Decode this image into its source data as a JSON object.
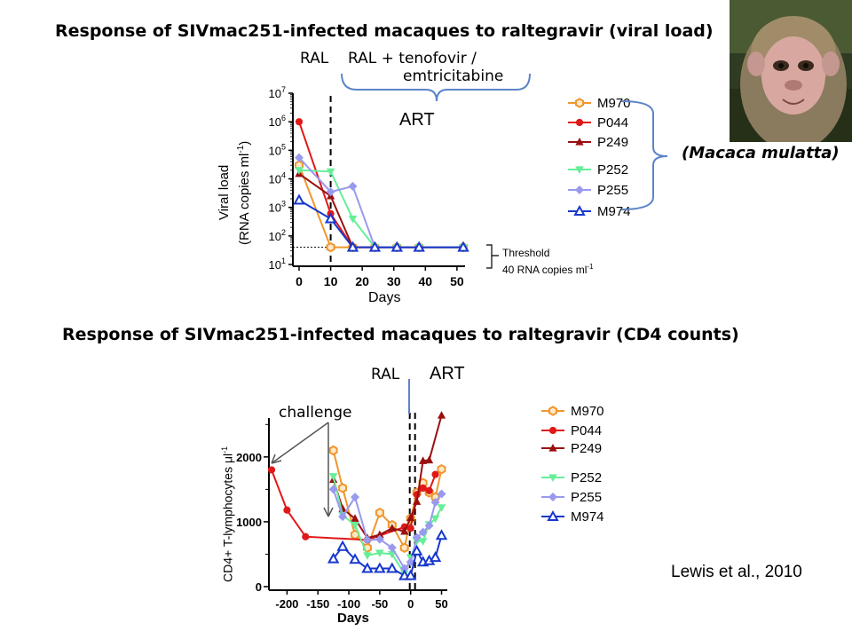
{
  "titles": {
    "viral": "Response of SIVmac251-infected macaques to raltegravir (viral load)",
    "cd4": "Response of SIVmac251-infected macaques to raltegravir (CD4 counts)"
  },
  "annotations": {
    "ral_top": "RAL",
    "ral_tdf": "RAL + tenofovir /",
    "emtric": "emtricitabine",
    "art_top": "ART",
    "threshold": "Threshold",
    "threshold_value": "40 RNA copies ml",
    "threshold_sup": "-1",
    "macaca": "(Macaca mulatta)",
    "ral_bottom": "RAL",
    "art_bottom": "ART",
    "challenge": "challenge",
    "citation": "Lewis et al., 2010"
  },
  "colors": {
    "M970": "#f0962c",
    "P044": "#e01818",
    "P249": "#9a1010",
    "P252": "#66ee99",
    "P255": "#9999ee",
    "M974": "#1838cc"
  },
  "chart_data": [
    {
      "type": "line",
      "title": "Response of SIVmac251-infected macaques to raltegravir (viral load)",
      "xlabel": "Days",
      "ylabel": "Viral load (RNA copies ml-1)",
      "ylabel_line1": "Viral load",
      "ylabel_line2": "(RNA copies ml",
      "ylabel_sup": "-1",
      "ylabel_end": ")",
      "yscale": "log",
      "xlim": [
        0,
        52
      ],
      "ylim": [
        10,
        10000000
      ],
      "x_ticks": [
        0,
        10,
        20,
        30,
        40,
        50
      ],
      "y_ticks": [
        {
          "v": 10,
          "m": "10",
          "e": "1"
        },
        {
          "v": 100,
          "m": "10",
          "e": "2"
        },
        {
          "v": 1000,
          "m": "10",
          "e": "3"
        },
        {
          "v": 10000,
          "m": "10",
          "e": "4"
        },
        {
          "v": 100000,
          "m": "10",
          "e": "5"
        },
        {
          "v": 1000000,
          "m": "10",
          "e": "6"
        },
        {
          "v": 10000000,
          "m": "10",
          "e": "7"
        }
      ],
      "threshold": 40,
      "treatment_start_day": 10,
      "series": [
        {
          "name": "M970",
          "marker": "hexagon",
          "x": [
            0,
            10,
            17,
            24,
            31,
            38,
            52
          ],
          "y": [
            30000,
            40,
            40,
            40,
            40,
            40,
            40
          ]
        },
        {
          "name": "P044",
          "marker": "circle",
          "x": [
            0,
            10,
            17,
            24,
            31,
            38,
            52
          ],
          "y": [
            1000000,
            600,
            40,
            40,
            40,
            40,
            40
          ]
        },
        {
          "name": "P249",
          "marker": "triangle-up",
          "x": [
            0,
            10,
            17,
            24,
            31,
            38,
            52
          ],
          "y": [
            15000,
            2500,
            40,
            40,
            40,
            40,
            40
          ]
        },
        {
          "name": "P252",
          "marker": "triangle-down",
          "x": [
            0,
            10,
            17,
            24,
            31,
            38,
            52
          ],
          "y": [
            20000,
            18000,
            400,
            40,
            40,
            40,
            40
          ]
        },
        {
          "name": "P255",
          "marker": "diamond",
          "x": [
            0,
            10,
            17,
            24,
            31,
            38,
            52
          ],
          "y": [
            55000,
            3500,
            5500,
            40,
            40,
            40,
            40
          ]
        },
        {
          "name": "M974",
          "marker": "triangle-up-open",
          "x": [
            0,
            10,
            17,
            24,
            31,
            38,
            52
          ],
          "y": [
            1800,
            400,
            40,
            40,
            40,
            40,
            40
          ]
        }
      ]
    },
    {
      "type": "line",
      "title": "Response of SIVmac251-infected macaques to raltegravir (CD4 counts)",
      "xlabel": "Days",
      "ylabel": "CD4+ T-lymphocytes μl-1",
      "xlim": [
        -225,
        55
      ],
      "ylim": [
        0,
        2600
      ],
      "x_ticks": [
        -200,
        -150,
        -100,
        -50,
        0,
        50
      ],
      "y_ticks": [
        0,
        1000,
        2000
      ],
      "ral_start_day": 0,
      "art_start_day": 10,
      "series": [
        {
          "name": "M970",
          "marker": "hexagon",
          "x": [
            -125,
            -110,
            -90,
            -70,
            -50,
            -30,
            -10,
            0,
            10,
            20,
            30,
            40,
            50
          ],
          "y": [
            2100,
            1520,
            800,
            600,
            1140,
            950,
            600,
            1050,
            1450,
            1600,
            1450,
            1380,
            1810
          ]
        },
        {
          "name": "P044",
          "marker": "circle",
          "x": [
            -225,
            -200,
            -170,
            -70,
            -10,
            0,
            10,
            20,
            30,
            40
          ],
          "y": [
            1800,
            1180,
            770,
            720,
            920,
            900,
            1420,
            1520,
            1480,
            1730
          ]
        },
        {
          "name": "P249",
          "marker": "triangle-up",
          "x": [
            -125,
            -110,
            -90,
            -70,
            -50,
            -30,
            -10,
            0,
            10,
            20,
            30,
            50
          ],
          "y": [
            1650,
            1200,
            1050,
            750,
            800,
            900,
            850,
            1060,
            1310,
            1940,
            1950,
            2640
          ]
        },
        {
          "name": "P252",
          "marker": "triangle-down",
          "x": [
            -125,
            -110,
            -90,
            -70,
            -50,
            -30,
            -10,
            0,
            10,
            20,
            30,
            40,
            50
          ],
          "y": [
            1700,
            1100,
            950,
            480,
            520,
            500,
            200,
            450,
            700,
            700,
            960,
            1050,
            1220
          ]
        },
        {
          "name": "P255",
          "marker": "diamond",
          "x": [
            -125,
            -110,
            -90,
            -70,
            -50,
            -30,
            -10,
            0,
            10,
            20,
            30,
            40,
            50
          ],
          "y": [
            1500,
            1080,
            1380,
            720,
            730,
            600,
            280,
            380,
            760,
            840,
            940,
            1300,
            1430
          ]
        },
        {
          "name": "M974",
          "marker": "triangle-up-open",
          "x": [
            -125,
            -110,
            -90,
            -70,
            -50,
            -30,
            -10,
            0,
            10,
            20,
            30,
            40,
            50
          ],
          "y": [
            430,
            620,
            420,
            280,
            280,
            280,
            170,
            170,
            550,
            380,
            400,
            450,
            790
          ]
        }
      ]
    }
  ]
}
